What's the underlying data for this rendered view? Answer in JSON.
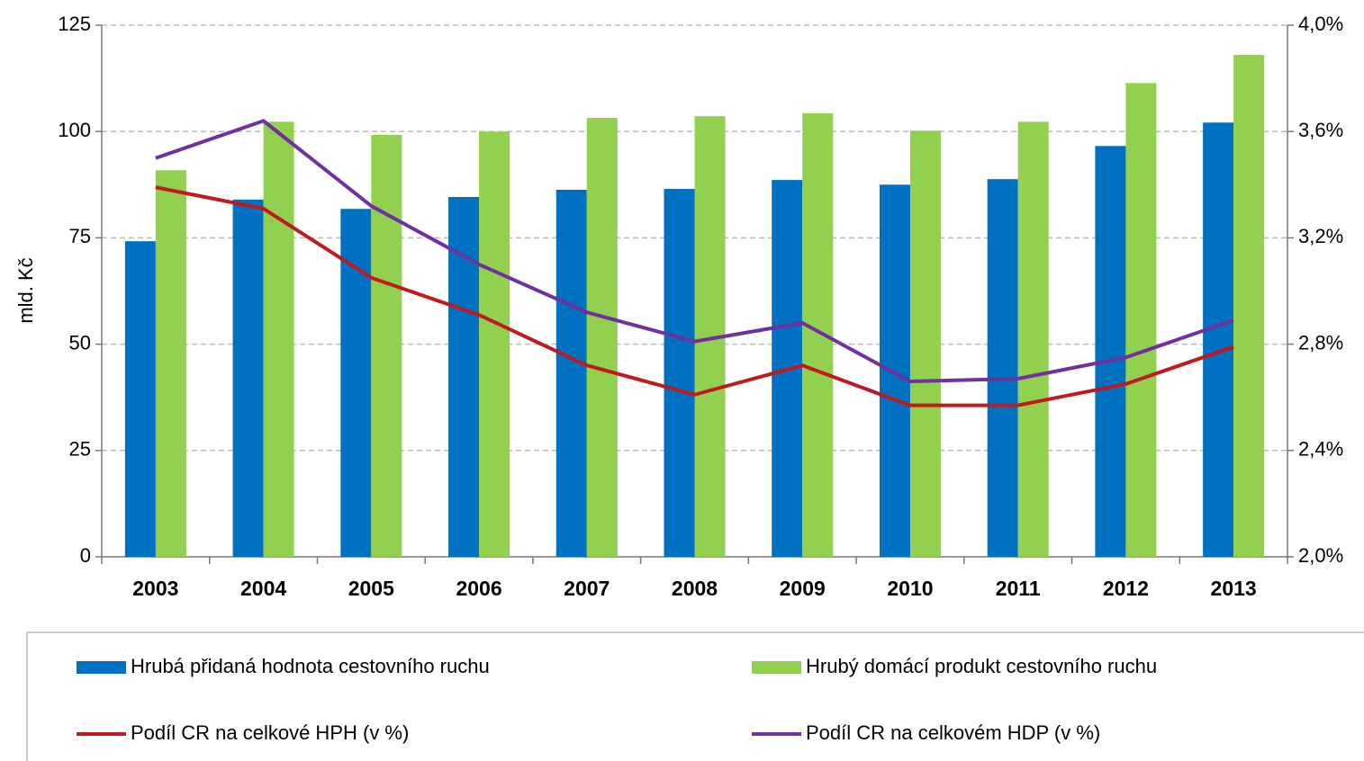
{
  "chart_data": {
    "type": "bar",
    "y_label": "mld. Kč",
    "categories": [
      "2003",
      "2004",
      "2005",
      "2006",
      "2007",
      "2008",
      "2009",
      "2010",
      "2011",
      "2012",
      "2013"
    ],
    "series": [
      {
        "name": "Hrubá přidaná hodnota cestovního ruchu",
        "type": "bar",
        "color": "#0070c0",
        "values": [
          74.2,
          84,
          81.8,
          84.6,
          86.3,
          86.5,
          88.6,
          87.5,
          88.8,
          96.6,
          102.1
        ]
      },
      {
        "name": "Hrubý domácí produkt cestovního ruchu",
        "type": "bar",
        "color": "#92d050",
        "values": [
          90.9,
          102.3,
          99.2,
          100,
          103.2,
          103.6,
          104.3,
          100.2,
          102.3,
          111.4,
          118
        ]
      },
      {
        "name": "Podíl CR na celkové HPH (v %)",
        "type": "line",
        "axis": "y2",
        "color": "#c0191f",
        "values": [
          3.39,
          3.31,
          3.05,
          2.91,
          2.72,
          2.61,
          2.72,
          2.57,
          2.57,
          2.65,
          2.79
        ]
      },
      {
        "name": "Podíl CR na celkovém HDP (v %)",
        "type": "line",
        "axis": "y2",
        "color": "#7030a0",
        "values": [
          3.5,
          3.64,
          3.32,
          3.1,
          2.92,
          2.81,
          2.88,
          2.66,
          2.67,
          2.75,
          2.89
        ]
      }
    ],
    "ylim": [
      0,
      125
    ],
    "yticks": [
      0,
      25,
      50,
      75,
      100,
      125
    ],
    "y2lim": [
      2,
      4
    ],
    "y2ticks": [
      {
        "value": 2,
        "label": "2,0%"
      },
      {
        "value": 2.4,
        "label": "2,4%"
      },
      {
        "value": 2.8,
        "label": "2,8%"
      },
      {
        "value": 3.2,
        "label": "3,2%"
      },
      {
        "value": 3.6,
        "label": "3,6%"
      },
      {
        "value": 4,
        "label": "4,0%"
      }
    ],
    "grid": true,
    "legend": "bottom"
  }
}
